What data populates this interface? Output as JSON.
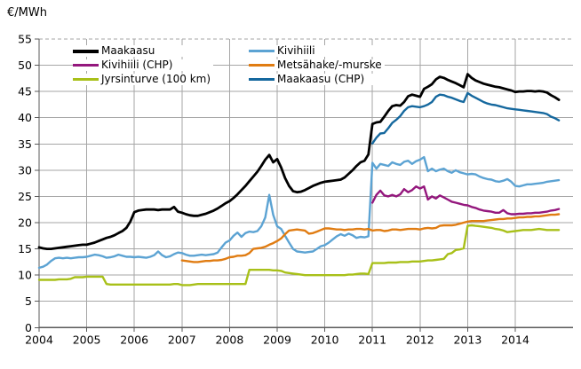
{
  "title": "€/MWh",
  "chart_data": {
    "type": "line",
    "unit_label": "€/MWh",
    "x_axis": {
      "start_year": 2004,
      "frequency": "monthly",
      "tick_years": [
        2004,
        2005,
        2006,
        2007,
        2008,
        2009,
        2010,
        2011,
        2012,
        2013,
        2014
      ]
    },
    "y_axis": {
      "min": 0,
      "max": 55,
      "tick_step": 5,
      "ticks": [
        0,
        5,
        10,
        15,
        20,
        25,
        30,
        35,
        40,
        45,
        50,
        55
      ]
    },
    "grid": {
      "horizontal": true,
      "vertical": true
    },
    "legend_position": "top-inside-two-columns",
    "legend": {
      "columns": [
        [
          "Maakaasu",
          "Kivihiili (CHP)",
          "Jyrsinturve (100 km)"
        ],
        [
          "Kivihiili",
          "Metsähake/-murske",
          "Maakaasu (CHP)"
        ]
      ]
    },
    "series": [
      {
        "id": "maakaasu",
        "name": "Maakaasu",
        "color": "#000000",
        "start_month_index": 0,
        "values": [
          15.3,
          15.1,
          15.0,
          15.0,
          15.1,
          15.2,
          15.3,
          15.4,
          15.5,
          15.6,
          15.7,
          15.8,
          15.8,
          16.0,
          16.2,
          16.5,
          16.8,
          17.1,
          17.3,
          17.6,
          18.0,
          18.4,
          19.0,
          20.2,
          22.0,
          22.3,
          22.4,
          22.5,
          22.5,
          22.5,
          22.4,
          22.5,
          22.5,
          22.5,
          23.0,
          22.1,
          21.9,
          21.6,
          21.4,
          21.3,
          21.3,
          21.5,
          21.7,
          22.0,
          22.3,
          22.7,
          23.2,
          23.7,
          24.1,
          24.7,
          25.4,
          26.2,
          27.0,
          27.9,
          28.8,
          29.7,
          30.8,
          32.0,
          32.9,
          31.5,
          32.1,
          30.5,
          28.5,
          27.0,
          26.0,
          25.8,
          25.9,
          26.2,
          26.6,
          27.0,
          27.3,
          27.6,
          27.8,
          27.9,
          28.0,
          28.1,
          28.2,
          28.6,
          29.3,
          30.0,
          30.8,
          31.5,
          31.8,
          33.0,
          38.8,
          39.1,
          39.2,
          40.2,
          41.3,
          42.2,
          42.4,
          42.3,
          43.0,
          44.1,
          44.4,
          44.2,
          44.0,
          45.5,
          45.9,
          46.4,
          47.3,
          47.8,
          47.6,
          47.2,
          46.9,
          46.6,
          46.2,
          45.8,
          48.3,
          47.6,
          47.1,
          46.8,
          46.5,
          46.3,
          46.1,
          45.9,
          45.8,
          45.6,
          45.4,
          45.2,
          44.9,
          45.0,
          45.0,
          45.1,
          45.1,
          45.0,
          45.1,
          45.0,
          44.8,
          44.3,
          43.9,
          43.4
        ]
      },
      {
        "id": "kivihiili-chp",
        "name": "Kivihiili (CHP)",
        "color": "#94177d",
        "start_month_index": 84,
        "values": [
          23.8,
          25.3,
          26.1,
          25.2,
          25.0,
          25.3,
          25.0,
          25.4,
          26.4,
          25.8,
          26.2,
          26.9,
          26.5,
          26.9,
          24.4,
          25.0,
          24.6,
          25.2,
          24.8,
          24.4,
          24.0,
          23.8,
          23.6,
          23.4,
          23.3,
          23.0,
          22.8,
          22.5,
          22.3,
          22.2,
          22.1,
          21.9,
          21.9,
          22.4,
          21.8,
          21.6,
          21.6,
          21.7,
          21.7,
          21.8,
          21.8,
          21.9,
          21.9,
          22.0,
          22.1,
          22.3,
          22.4,
          22.6
        ]
      },
      {
        "id": "jyrsinturve",
        "name": "Jyrsinturve (100 km)",
        "color": "#a8c019",
        "start_month_index": 0,
        "values": [
          9.1,
          9.1,
          9.1,
          9.1,
          9.1,
          9.2,
          9.2,
          9.2,
          9.3,
          9.6,
          9.6,
          9.6,
          9.7,
          9.7,
          9.7,
          9.7,
          9.7,
          8.3,
          8.2,
          8.2,
          8.2,
          8.2,
          8.2,
          8.2,
          8.2,
          8.2,
          8.2,
          8.2,
          8.2,
          8.2,
          8.2,
          8.2,
          8.2,
          8.2,
          8.3,
          8.3,
          8.1,
          8.1,
          8.1,
          8.2,
          8.3,
          8.3,
          8.3,
          8.3,
          8.3,
          8.3,
          8.3,
          8.3,
          8.3,
          8.3,
          8.3,
          8.3,
          8.3,
          11.0,
          11.0,
          11.0,
          11.0,
          11.0,
          11.0,
          10.9,
          10.9,
          10.8,
          10.5,
          10.4,
          10.3,
          10.2,
          10.1,
          10.0,
          10.0,
          10.0,
          10.0,
          10.0,
          10.0,
          10.0,
          10.0,
          10.0,
          10.0,
          10.0,
          10.1,
          10.1,
          10.2,
          10.3,
          10.3,
          10.2,
          12.3,
          12.3,
          12.3,
          12.3,
          12.4,
          12.4,
          12.4,
          12.5,
          12.5,
          12.5,
          12.6,
          12.6,
          12.6,
          12.7,
          12.8,
          12.8,
          12.9,
          13.0,
          13.1,
          14.0,
          14.2,
          14.8,
          14.9,
          15.1,
          19.4,
          19.5,
          19.4,
          19.3,
          19.2,
          19.1,
          19.0,
          18.8,
          18.7,
          18.5,
          18.2,
          18.3,
          18.4,
          18.5,
          18.6,
          18.6,
          18.6,
          18.7,
          18.8,
          18.7,
          18.6,
          18.6,
          18.6,
          18.6
        ]
      },
      {
        "id": "kivihiili",
        "name": "Kivihiili",
        "color": "#5ca3d3",
        "start_month_index": 0,
        "values": [
          11.4,
          11.6,
          12.0,
          12.7,
          13.2,
          13.3,
          13.2,
          13.3,
          13.2,
          13.3,
          13.4,
          13.4,
          13.5,
          13.7,
          13.9,
          13.8,
          13.6,
          13.3,
          13.4,
          13.6,
          13.9,
          13.7,
          13.5,
          13.5,
          13.4,
          13.5,
          13.4,
          13.3,
          13.5,
          13.8,
          14.5,
          13.8,
          13.4,
          13.6,
          14.0,
          14.3,
          14.2,
          13.9,
          13.7,
          13.7,
          13.8,
          13.9,
          13.8,
          13.9,
          14.0,
          14.3,
          15.3,
          16.2,
          16.6,
          17.5,
          18.1,
          17.3,
          18.0,
          18.3,
          18.2,
          18.4,
          19.3,
          21.0,
          25.3,
          21.5,
          19.3,
          18.8,
          17.5,
          16.2,
          15.0,
          14.5,
          14.4,
          14.3,
          14.4,
          14.5,
          15.0,
          15.5,
          15.7,
          16.2,
          16.8,
          17.4,
          17.8,
          17.5,
          17.9,
          17.6,
          17.1,
          17.3,
          17.2,
          17.4,
          31.4,
          30.3,
          31.2,
          31.0,
          30.8,
          31.5,
          31.2,
          31.0,
          31.6,
          31.8,
          31.2,
          31.7,
          32.0,
          32.5,
          29.8,
          30.3,
          29.8,
          30.1,
          30.3,
          29.8,
          29.5,
          30.0,
          29.6,
          29.4,
          29.2,
          29.3,
          29.2,
          28.8,
          28.5,
          28.3,
          28.2,
          27.9,
          27.8,
          28.0,
          28.3,
          27.8,
          27.0,
          26.9,
          27.1,
          27.3,
          27.3,
          27.4,
          27.5,
          27.6,
          27.8,
          27.9,
          28.0,
          28.1
        ]
      },
      {
        "id": "metsahake",
        "name": "Metsähake/-murske",
        "color": "#e07c12",
        "start_month_index": 36,
        "values": [
          12.8,
          12.7,
          12.6,
          12.5,
          12.5,
          12.6,
          12.7,
          12.7,
          12.8,
          12.8,
          12.9,
          13.1,
          13.4,
          13.5,
          13.7,
          13.7,
          13.8,
          14.2,
          15.0,
          15.1,
          15.2,
          15.4,
          15.8,
          16.1,
          16.5,
          17.0,
          17.8,
          18.5,
          18.6,
          18.7,
          18.6,
          18.5,
          17.9,
          18.0,
          18.3,
          18.6,
          18.9,
          18.9,
          18.8,
          18.7,
          18.7,
          18.6,
          18.7,
          18.7,
          18.8,
          18.8,
          18.7,
          18.8,
          18.5,
          18.6,
          18.6,
          18.4,
          18.5,
          18.7,
          18.7,
          18.6,
          18.7,
          18.8,
          18.8,
          18.8,
          18.7,
          18.9,
          19.0,
          18.9,
          19.0,
          19.4,
          19.5,
          19.5,
          19.5,
          19.6,
          19.8,
          20.0,
          20.2,
          20.3,
          20.3,
          20.3,
          20.3,
          20.4,
          20.5,
          20.6,
          20.7,
          20.7,
          20.8,
          20.8,
          20.9,
          21.0,
          21.0,
          21.1,
          21.1,
          21.2,
          21.2,
          21.3,
          21.4,
          21.5,
          21.5,
          21.6
        ]
      },
      {
        "id": "maakaasu-chp",
        "name": "Maakaasu (CHP)",
        "color": "#15689e",
        "start_month_index": 84,
        "values": [
          35.1,
          36.2,
          37.0,
          37.1,
          38.0,
          39.0,
          39.6,
          40.3,
          41.3,
          42.0,
          42.2,
          42.1,
          42.0,
          42.2,
          42.5,
          43.0,
          44.0,
          44.4,
          44.3,
          44.0,
          43.8,
          43.5,
          43.2,
          43.0,
          44.7,
          44.2,
          43.8,
          43.4,
          43.0,
          42.7,
          42.5,
          42.4,
          42.2,
          42.0,
          41.8,
          41.7,
          41.6,
          41.5,
          41.4,
          41.3,
          41.2,
          41.1,
          41.0,
          40.9,
          40.7,
          40.2,
          39.9,
          39.5
        ]
      }
    ]
  }
}
